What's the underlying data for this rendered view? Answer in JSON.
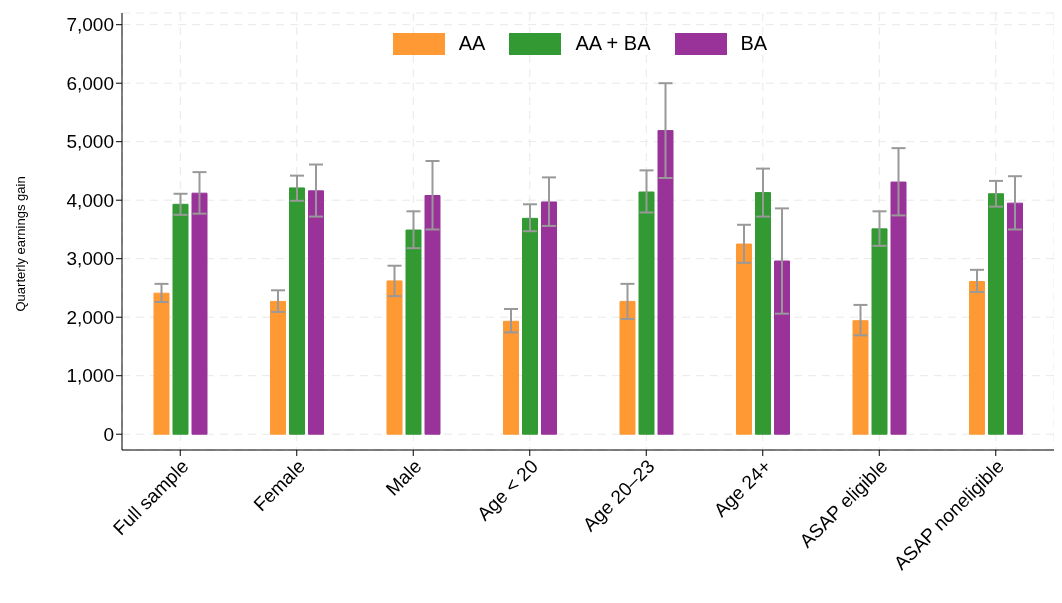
{
  "chart_data": {
    "type": "bar",
    "ylabel": "Quarterly earnings gain",
    "categories": [
      "Full sample",
      "Female",
      "Male",
      "Age < 20",
      "Age 20–23",
      "Age 24+",
      "ASAP eligible",
      "ASAP noneligible"
    ],
    "series": [
      {
        "name": "AA",
        "color": "#ff9933",
        "values": [
          2410,
          2270,
          2620,
          1930,
          2270,
          3250,
          1940,
          2610
        ],
        "errors": [
          [
            2260,
            2570
          ],
          [
            2090,
            2460
          ],
          [
            2360,
            2880
          ],
          [
            1740,
            2140
          ],
          [
            1970,
            2570
          ],
          [
            2930,
            3580
          ],
          [
            1690,
            2210
          ],
          [
            2430,
            2810
          ]
        ]
      },
      {
        "name": "AA + BA",
        "color": "#339933",
        "values": [
          3930,
          4210,
          3490,
          3690,
          4140,
          4130,
          3510,
          4110
        ],
        "errors": [
          [
            3750,
            4110
          ],
          [
            3990,
            4420
          ],
          [
            3180,
            3810
          ],
          [
            3470,
            3930
          ],
          [
            3790,
            4510
          ],
          [
            3720,
            4540
          ],
          [
            3220,
            3810
          ],
          [
            3890,
            4330
          ]
        ]
      },
      {
        "name": "BA",
        "color": "#993399",
        "values": [
          4120,
          4160,
          4080,
          3970,
          5190,
          2960,
          4310,
          3950
        ],
        "errors": [
          [
            3770,
            4480
          ],
          [
            3720,
            4610
          ],
          [
            3500,
            4670
          ],
          [
            3560,
            4390
          ],
          [
            4380,
            6000
          ],
          [
            2060,
            3860
          ],
          [
            3740,
            4890
          ],
          [
            3500,
            4410
          ]
        ]
      }
    ],
    "ylim": [
      -270,
      7200
    ],
    "yticks": [
      0,
      {
        "value": 1000,
        "label": "1,000"
      },
      {
        "value": 2000,
        "label": "2,000"
      },
      {
        "value": 3000,
        "label": "3,000"
      },
      {
        "value": 4000,
        "label": "4,000"
      },
      {
        "value": 5000,
        "label": "5,000"
      },
      {
        "value": 6000,
        "label": "6,000"
      },
      {
        "value": 7000,
        "label": "7,000"
      }
    ],
    "grid": true,
    "legend": "top"
  }
}
